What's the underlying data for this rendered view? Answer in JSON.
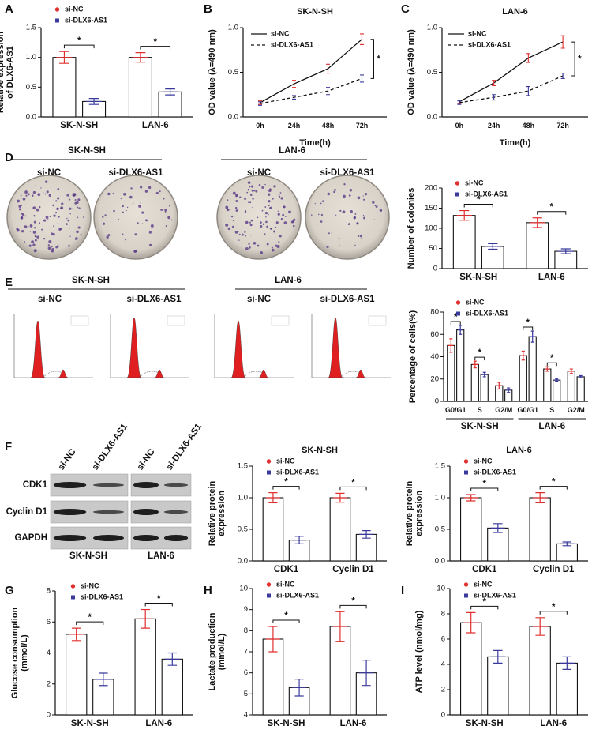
{
  "panel_labels": [
    "A",
    "B",
    "C",
    "D",
    "E",
    "F",
    "G",
    "H",
    "I"
  ],
  "colony_images": {
    "cell_lines": [
      "SK-N-SH",
      "LAN-6"
    ],
    "conditions": [
      "si-NC",
      "si-DLX6-AS1"
    ]
  },
  "flow_images": {
    "cell_lines": [
      "SK-N-SH",
      "LAN-6"
    ],
    "conditions": [
      "si-NC",
      "si-DLX6-AS1"
    ]
  },
  "western_blot": {
    "cell_lines": [
      "SK-N-SH",
      "LAN-6"
    ],
    "conditions": [
      "si-NC",
      "si-DLX6-AS1"
    ],
    "proteins": [
      "CDK1",
      "Cyclin D1",
      "GAPDH"
    ]
  },
  "chart_data": [
    {
      "type": "bar",
      "ylabel": [
        "Relative expression",
        "of DLX6-AS1"
      ],
      "categories": [
        "SK-N-SH",
        "LAN-6"
      ],
      "series": [
        {
          "name": "si-NC",
          "color": "#e0302f",
          "marker": "circle",
          "values": [
            1.0,
            1.0
          ],
          "errors": [
            0.1,
            0.08
          ]
        },
        {
          "name": "si-DLX6-AS1",
          "color": "#3a3a9c",
          "marker": "square",
          "values": [
            0.26,
            0.42
          ],
          "errors": [
            0.05,
            0.05
          ]
        }
      ],
      "annotations": [
        "*",
        "*"
      ],
      "ylim": [
        0,
        1.5
      ],
      "yticks": [
        {
          "value": 0,
          "label": "0.0"
        },
        0.5,
        {
          "value": 1,
          "label": "1.0"
        },
        1.5
      ]
    },
    {
      "type": "line",
      "title": "SK-N-SH",
      "ylabel": [
        "OD value (λ=490 nm)"
      ],
      "xlabel": "Time(h)",
      "categories": [
        "0h",
        "24h",
        "48h",
        "72h"
      ],
      "series": [
        {
          "name": "si-NC",
          "color": "#111111",
          "line_style": "solid",
          "values": [
            0.16,
            0.37,
            0.54,
            0.87
          ],
          "errors": [
            0.02,
            0.04,
            0.05,
            0.06
          ]
        },
        {
          "name": "si-DLX6-AS1",
          "color": "#111111",
          "line_style": "dashed",
          "values": [
            0.15,
            0.22,
            0.29,
            0.43
          ],
          "errors": [
            0.02,
            0.02,
            0.04,
            0.04
          ]
        }
      ],
      "annotation": "*",
      "ylim": [
        0,
        1.0
      ],
      "yticks": [
        {
          "value": 0,
          "label": "0.0"
        },
        0.5,
        {
          "value": 1,
          "label": "1.0"
        }
      ]
    },
    {
      "type": "line",
      "title": "LAN-6",
      "ylabel": [
        "OD value (λ=490 nm)"
      ],
      "xlabel": "Time(h)",
      "categories": [
        "0h",
        "24h",
        "48h",
        "72h"
      ],
      "series": [
        {
          "name": "si-NC",
          "color": "#111111",
          "line_style": "solid",
          "values": [
            0.17,
            0.38,
            0.66,
            0.84
          ],
          "errors": [
            0.02,
            0.03,
            0.05,
            0.07
          ]
        },
        {
          "name": "si-DLX6-AS1",
          "color": "#111111",
          "line_style": "dashed",
          "values": [
            0.16,
            0.22,
            0.29,
            0.46
          ],
          "errors": [
            0.02,
            0.03,
            0.05,
            0.03
          ]
        }
      ],
      "annotation": "*",
      "ylim": [
        0,
        1.0
      ],
      "yticks": [
        {
          "value": 0,
          "label": "0.0"
        },
        0.5,
        {
          "value": 1,
          "label": "1.0"
        }
      ]
    },
    {
      "type": "bar",
      "ylabel": [
        "Number of colonies"
      ],
      "categories": [
        "SK-N-SH",
        "LAN-6"
      ],
      "series": [
        {
          "name": "si-NC",
          "color": "#e0302f",
          "marker": "circle",
          "values": [
            132,
            114
          ],
          "errors": [
            12,
            12
          ]
        },
        {
          "name": "si-DLX6-AS1",
          "color": "#3a3a9c",
          "marker": "square",
          "values": [
            55,
            43
          ],
          "errors": [
            7,
            6
          ]
        }
      ],
      "annotations": [
        "*",
        "*"
      ],
      "ylim": [
        0,
        200
      ],
      "yticks": [
        0,
        50,
        100,
        150,
        200
      ]
    },
    {
      "type": "bar",
      "ylabel": [
        "Percentage of cells(%)"
      ],
      "categories": [
        "G0/G1",
        "S",
        "G2/M",
        "G0/G1",
        "S",
        "G2/M"
      ],
      "category_groups": [
        "SK-N-SH",
        "LAN-6"
      ],
      "series": [
        {
          "name": "si-NC",
          "color": "#e0302f",
          "marker": "circle",
          "values": [
            50,
            33,
            14,
            41,
            29,
            27
          ],
          "errors": [
            6,
            3,
            3,
            4,
            2,
            2
          ]
        },
        {
          "name": "si-DLX6-AS1",
          "color": "#3a3a9c",
          "marker": "square",
          "values": [
            64,
            24,
            10,
            58,
            19,
            22
          ],
          "errors": [
            4,
            2,
            2,
            5,
            1,
            1
          ]
        }
      ],
      "annotations": [
        "*",
        "*",
        null,
        "*",
        "*",
        null
      ],
      "ylim": [
        0,
        80
      ],
      "yticks": [
        0,
        20,
        40,
        60,
        80
      ]
    },
    {
      "type": "bar",
      "title": "SK-N-SH",
      "ylabel": [
        "Relative protein",
        "expression"
      ],
      "categories": [
        "CDK1",
        "Cyclin D1"
      ],
      "series": [
        {
          "name": "si-NC",
          "color": "#e0302f",
          "marker": "circle",
          "values": [
            1.0,
            1.0
          ],
          "errors": [
            0.08,
            0.07
          ]
        },
        {
          "name": "si-DLX6-AS1",
          "color": "#3a3a9c",
          "marker": "square",
          "values": [
            0.33,
            0.42
          ],
          "errors": [
            0.06,
            0.06
          ]
        }
      ],
      "annotations": [
        "*",
        "*"
      ],
      "ylim": [
        0,
        1.5
      ],
      "yticks": [
        {
          "value": 0,
          "label": "0.0"
        },
        0.5,
        {
          "value": 1,
          "label": "1.0"
        },
        1.5
      ]
    },
    {
      "type": "bar",
      "title": "LAN-6",
      "ylabel": [
        "Relative protein",
        "expression"
      ],
      "categories": [
        "CDK1",
        "Cyclin D1"
      ],
      "series": [
        {
          "name": "si-NC",
          "color": "#e0302f",
          "marker": "circle",
          "values": [
            1.0,
            1.0
          ],
          "errors": [
            0.05,
            0.08
          ]
        },
        {
          "name": "si-DLX6-AS1",
          "color": "#3a3a9c",
          "marker": "square",
          "values": [
            0.52,
            0.27
          ],
          "errors": [
            0.07,
            0.03
          ]
        }
      ],
      "annotations": [
        "*",
        "*"
      ],
      "ylim": [
        0,
        1.5
      ],
      "yticks": [
        {
          "value": 0,
          "label": "0.0"
        },
        0.5,
        {
          "value": 1,
          "label": "1.0"
        },
        1.5
      ]
    },
    {
      "type": "bar",
      "ylabel": [
        "Glucose consumption",
        "(mmol/L)"
      ],
      "categories": [
        "SK-N-SH",
        "LAN-6"
      ],
      "series": [
        {
          "name": "si-NC",
          "color": "#e0302f",
          "marker": "circle",
          "values": [
            5.2,
            6.2
          ],
          "errors": [
            0.4,
            0.6
          ]
        },
        {
          "name": "si-DLX6-AS1",
          "color": "#3a3a9c",
          "marker": "square",
          "values": [
            2.3,
            3.6
          ],
          "errors": [
            0.4,
            0.4
          ]
        }
      ],
      "annotations": [
        "*",
        "*"
      ],
      "ylim": [
        0,
        8
      ],
      "yticks": [
        0,
        2,
        4,
        6,
        8
      ]
    },
    {
      "type": "bar",
      "ylabel": [
        "Lactate production",
        "(mmol/L)"
      ],
      "categories": [
        "SK-N-SH",
        "LAN-6"
      ],
      "series": [
        {
          "name": "si-NC",
          "color": "#e0302f",
          "marker": "circle",
          "values": [
            7.6,
            8.2
          ],
          "errors": [
            0.6,
            0.7
          ]
        },
        {
          "name": "si-DLX6-AS1",
          "color": "#3a3a9c",
          "marker": "square",
          "values": [
            5.3,
            6.0
          ],
          "errors": [
            0.4,
            0.6
          ]
        }
      ],
      "annotations": [
        "*",
        "*"
      ],
      "ylim": [
        4,
        10
      ],
      "yticks": [
        4,
        5,
        6,
        7,
        8,
        9,
        10
      ]
    },
    {
      "type": "bar",
      "ylabel": [
        "ATP level (nmol/mg)"
      ],
      "categories": [
        "SK-N-SH",
        "LAN-6"
      ],
      "series": [
        {
          "name": "si-NC",
          "color": "#e0302f",
          "marker": "circle",
          "values": [
            7.3,
            7.0
          ],
          "errors": [
            0.8,
            0.7
          ]
        },
        {
          "name": "si-DLX6-AS1",
          "color": "#3a3a9c",
          "marker": "square",
          "values": [
            4.6,
            4.1
          ],
          "errors": [
            0.5,
            0.5
          ]
        }
      ],
      "annotations": [
        "*",
        "*"
      ],
      "ylim": [
        0,
        10
      ],
      "yticks": [
        0,
        2,
        4,
        6,
        8,
        10
      ]
    }
  ]
}
